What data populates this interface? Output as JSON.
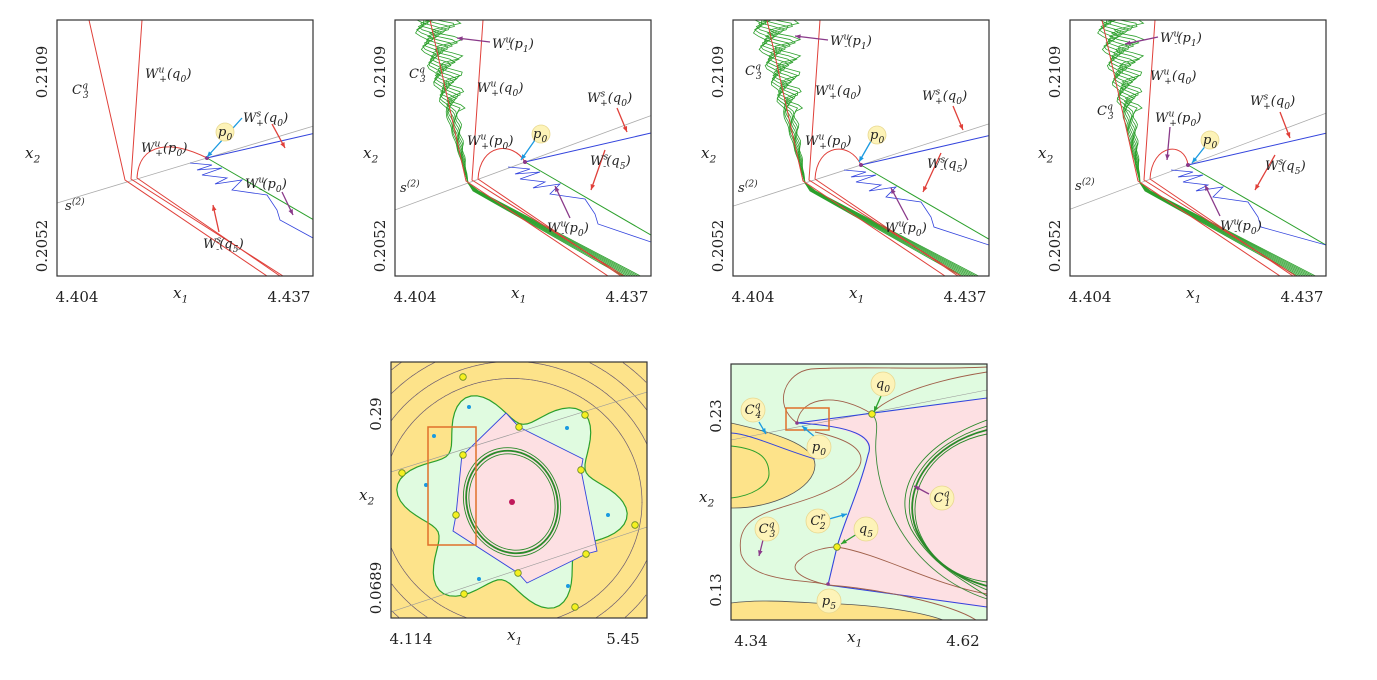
{
  "colors": {
    "red": "#e0403a",
    "green": "#2ca02c",
    "blue": "#3344dd",
    "brown": "#a0604a",
    "purple": "#8a3a8a",
    "cyan": "#1a9ae0",
    "yellow_bg": "#fde38a",
    "green_bg": "#e0fbe0",
    "pink_bg": "#fde0e3",
    "bubble": "#fdf3b8",
    "orange": "#e0702a"
  },
  "panels": [
    {
      "ytick_top": "0.2109",
      "ytick_bottom": "0.2052",
      "xtick_left": "4.404",
      "xtick_right": "4.437",
      "xlabel": "x_{1}",
      "ylabel": "x_{2}",
      "labels": [
        "W^{u}_{+}(q_{0})",
        "C^{q}_{3}",
        "W^{u}_{+}(p_{0})",
        "p_{0}",
        "W^{s}_{+}(q_{0})",
        "W^{u}_{-}(p_{0})",
        "s^{(2)}",
        "W^{s}_{-}(q_{5})"
      ]
    },
    {
      "ytick_top": "0.2109",
      "ytick_bottom": "0.2052",
      "xtick_left": "4.404",
      "xtick_right": "4.437",
      "xlabel": "x_{1}",
      "ylabel": "x_{2}",
      "labels": [
        "W^{u}_{-}(p_{1})",
        "C^{q}_{3}",
        "W^{u}_{+}(q_{0})",
        "W^{s}_{+}(q_{0})",
        "W^{u}_{+}(p_{0})",
        "p_{0}",
        "W^{s}_{-}(q_{5})",
        "s^{(2)}",
        "W^{u}_{-}(p_{0})"
      ]
    },
    {
      "ytick_top": "0.2109",
      "ytick_bottom": "0.2052",
      "xtick_left": "4.404",
      "xtick_right": "4.437",
      "xlabel": "x_{1}",
      "ylabel": "x_{2}",
      "labels": [
        "W^{u}_{-}(p_{1})",
        "C^{q}_{3}",
        "W^{u}_{+}(q_{0})",
        "W^{s}_{+}(q_{0})",
        "W^{u}_{+}(p_{0})",
        "p_{0}",
        "W^{s}_{-}(q_{5})",
        "s^{(2)}",
        "W^{u}_{-}(p_{0})"
      ]
    },
    {
      "ytick_top": "0.2109",
      "ytick_bottom": "0.2052",
      "xtick_left": "4.404",
      "xtick_right": "4.437",
      "xlabel": "x_{1}",
      "ylabel": "x_{2}",
      "labels": [
        "W^{u}_{-}(p_{1})",
        "W^{u}_{+}(q_{0})",
        "C^{q}_{3}",
        "W^{s}_{+}(q_{0})",
        "W^{u}_{+}(p_{0})",
        "p_{0}",
        "W^{s}_{-}(q_{5})",
        "s^{(2)}",
        "W^{u}_{-}(p_{0})"
      ]
    },
    {
      "ytick_top": "0.29",
      "ytick_bottom": "0.0689",
      "xtick_left": "4.114",
      "xtick_right": "5.45",
      "xlabel": "x_{1}",
      "ylabel": "x_{2}",
      "labels": []
    },
    {
      "ytick_top": "0.23",
      "ytick_bottom": "0.13",
      "xtick_left": "4.34",
      "xtick_right": "4.62",
      "xlabel": "x_{1}",
      "ylabel": "x_{2}",
      "labels": [
        "q_{0}",
        "C^{q}_{4}",
        "p_{0}",
        "C^{q}_{1}",
        "C^{r}_{2}",
        "q_{5}",
        "C^{q}_{3}",
        "p_{5}"
      ]
    }
  ]
}
